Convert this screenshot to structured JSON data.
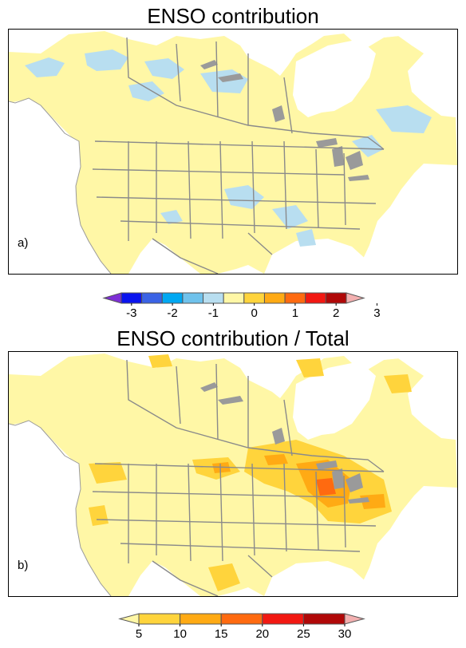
{
  "panels": [
    {
      "title": "ENSO contribution",
      "letter": "a)",
      "colorbar": {
        "ticks": [
          "-3",
          "-2",
          "-1",
          "0",
          "1",
          "2",
          "3"
        ],
        "colors": [
          "#7e2fd6",
          "#0a14ee",
          "#3a63e5",
          "#00a8f2",
          "#6fc2ec",
          "#b8def0",
          "#fff7a6",
          "#ffd43c",
          "#ffaa14",
          "#ff6a10",
          "#f21812",
          "#b00808",
          "#f3b0b0"
        ]
      }
    },
    {
      "title": "ENSO contribution / Total",
      "letter": "b)",
      "colorbar": {
        "ticks": [
          "5",
          "10",
          "15",
          "20",
          "25",
          "30"
        ],
        "colors": [
          "#fff7a6",
          "#ffd43c",
          "#ffaa14",
          "#ff6a10",
          "#f21812",
          "#b00808",
          "#f3b0b0"
        ]
      }
    }
  ],
  "map": {
    "land_color": "#fff7a6",
    "ocean_color": "#ffffff",
    "boundary_color": "#8a8a8a",
    "lake_color": "#9a9a9a"
  }
}
